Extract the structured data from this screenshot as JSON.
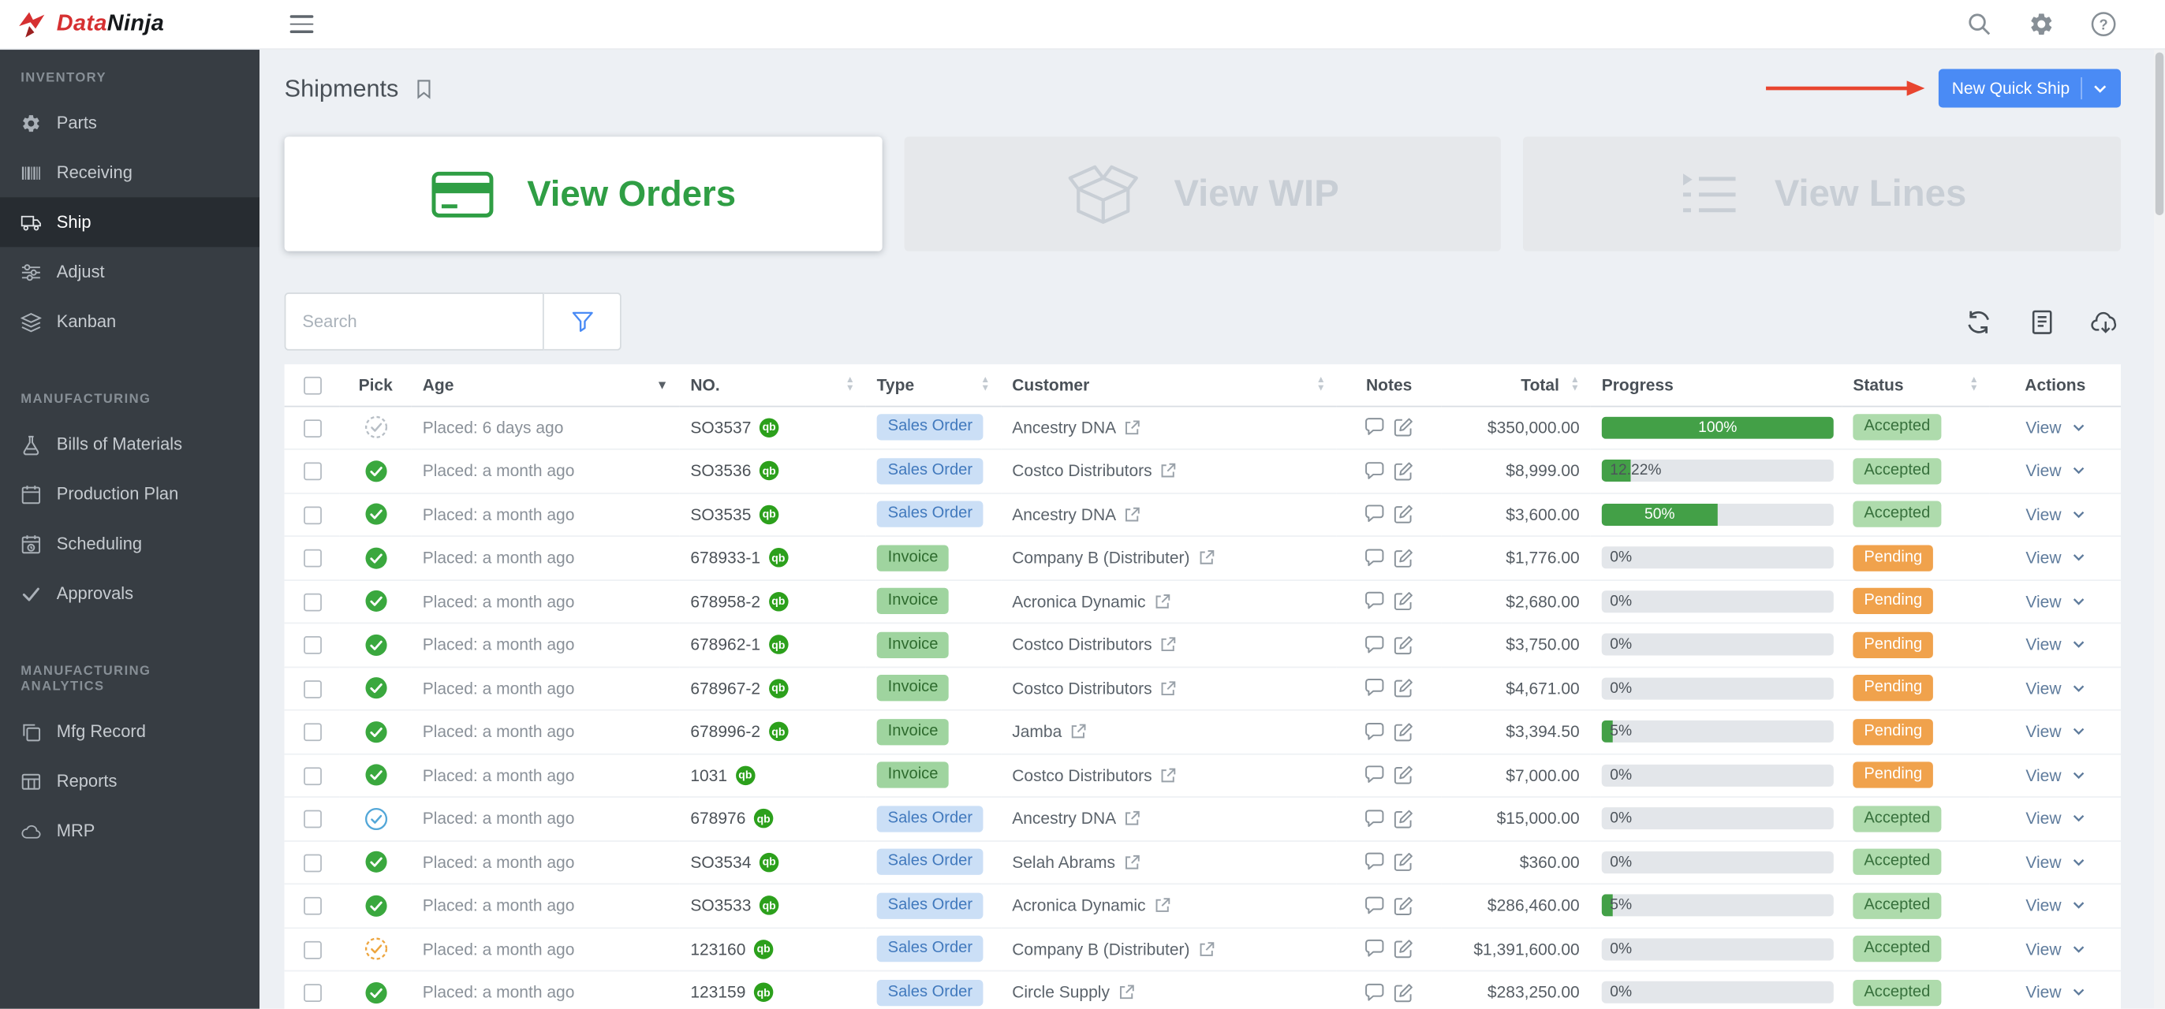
{
  "brand": {
    "name_red": "Data",
    "name_dark": "Ninja"
  },
  "topbar": {
    "icons": [
      {
        "name": "search"
      },
      {
        "name": "gear"
      },
      {
        "name": "help"
      }
    ]
  },
  "sidebar": {
    "sections": [
      {
        "title": "INVENTORY",
        "items": [
          {
            "label": "Parts",
            "icon": "parts",
            "active": false
          },
          {
            "label": "Receiving",
            "icon": "receiving",
            "active": false
          },
          {
            "label": "Ship",
            "icon": "ship",
            "active": true
          },
          {
            "label": "Adjust",
            "icon": "adjust",
            "active": false
          },
          {
            "label": "Kanban",
            "icon": "kanban",
            "active": false
          }
        ]
      },
      {
        "title": "MANUFACTURING",
        "items": [
          {
            "label": "Bills of Materials",
            "icon": "bom",
            "active": false
          },
          {
            "label": "Production Plan",
            "icon": "plan",
            "active": false
          },
          {
            "label": "Scheduling",
            "icon": "schedule",
            "active": false
          },
          {
            "label": "Approvals",
            "icon": "approvals",
            "active": false
          }
        ]
      },
      {
        "title": "MANUFACTURING ANALYTICS",
        "items": [
          {
            "label": "Mfg Record",
            "icon": "record",
            "active": false
          },
          {
            "label": "Reports",
            "icon": "reports",
            "active": false
          },
          {
            "label": "MRP",
            "icon": "mrp",
            "active": false
          }
        ]
      }
    ]
  },
  "page": {
    "title": "Shipments",
    "primary_button": {
      "label": "New Quick Ship"
    },
    "view_cards": [
      {
        "label": "View Orders",
        "icon": "credit-card",
        "state": "active"
      },
      {
        "label": "View WIP",
        "icon": "open-box",
        "state": "disabled"
      },
      {
        "label": "View Lines",
        "icon": "list-lines",
        "state": "disabled"
      }
    ],
    "search": {
      "placeholder": "Search"
    },
    "toolbar_icons": [
      {
        "name": "refresh"
      },
      {
        "name": "report"
      },
      {
        "name": "export"
      }
    ]
  },
  "table": {
    "columns": [
      {
        "key": "pick",
        "label": "Pick",
        "sort": "none"
      },
      {
        "key": "age",
        "label": "Age",
        "sort": "desc"
      },
      {
        "key": "no",
        "label": "NO.",
        "sort": "both"
      },
      {
        "key": "type",
        "label": "Type",
        "sort": "both"
      },
      {
        "key": "customer",
        "label": "Customer",
        "sort": "both"
      },
      {
        "key": "notes",
        "label": "Notes",
        "sort": "none"
      },
      {
        "key": "total",
        "label": "Total",
        "sort": "both"
      },
      {
        "key": "progress",
        "label": "Progress",
        "sort": "none"
      },
      {
        "key": "status",
        "label": "Status",
        "sort": "both"
      },
      {
        "key": "actions",
        "label": "Actions",
        "sort": "none"
      }
    ],
    "rows": [
      {
        "pick": "muted",
        "age": "Placed: 6 days ago",
        "no": "SO3537",
        "type": "Sales Order",
        "customer": "Ancestry DNA",
        "total": "$350,000.00",
        "progress_pct": 100,
        "progress_label": "100%",
        "status": "Accepted",
        "action": "View"
      },
      {
        "pick": "done",
        "age": "Placed: a month ago",
        "no": "SO3536",
        "type": "Sales Order",
        "customer": "Costco Distributors",
        "total": "$8,999.00",
        "progress_pct": 12.22,
        "progress_label": "12.22%",
        "status": "Accepted",
        "action": "View"
      },
      {
        "pick": "done",
        "age": "Placed: a month ago",
        "no": "SO3535",
        "type": "Sales Order",
        "customer": "Ancestry DNA",
        "total": "$3,600.00",
        "progress_pct": 50,
        "progress_label": "50%",
        "status": "Accepted",
        "action": "View"
      },
      {
        "pick": "done",
        "age": "Placed: a month ago",
        "no": "678933-1",
        "type": "Invoice",
        "customer": "Company B (Distributer)",
        "total": "$1,776.00",
        "progress_pct": 0,
        "progress_label": "0%",
        "status": "Pending",
        "action": "View"
      },
      {
        "pick": "done",
        "age": "Placed: a month ago",
        "no": "678958-2",
        "type": "Invoice",
        "customer": "Acronica Dynamic",
        "total": "$2,680.00",
        "progress_pct": 0,
        "progress_label": "0%",
        "status": "Pending",
        "action": "View"
      },
      {
        "pick": "done",
        "age": "Placed: a month ago",
        "no": "678962-1",
        "type": "Invoice",
        "customer": "Costco Distributors",
        "total": "$3,750.00",
        "progress_pct": 0,
        "progress_label": "0%",
        "status": "Pending",
        "action": "View"
      },
      {
        "pick": "done",
        "age": "Placed: a month ago",
        "no": "678967-2",
        "type": "Invoice",
        "customer": "Costco Distributors",
        "total": "$4,671.00",
        "progress_pct": 0,
        "progress_label": "0%",
        "status": "Pending",
        "action": "View"
      },
      {
        "pick": "done",
        "age": "Placed: a month ago",
        "no": "678996-2",
        "type": "Invoice",
        "customer": "Jamba",
        "total": "$3,394.50",
        "progress_pct": 5,
        "progress_label": "5%",
        "status": "Pending",
        "action": "View"
      },
      {
        "pick": "done",
        "age": "Placed: a month ago",
        "no": "1031",
        "type": "Invoice",
        "customer": "Costco Distributors",
        "total": "$7,000.00",
        "progress_pct": 0,
        "progress_label": "0%",
        "status": "Pending",
        "action": "View"
      },
      {
        "pick": "outline-blue",
        "age": "Placed: a month ago",
        "no": "678976",
        "type": "Sales Order",
        "customer": "Ancestry DNA",
        "total": "$15,000.00",
        "progress_pct": 0,
        "progress_label": "0%",
        "status": "Accepted",
        "action": "View"
      },
      {
        "pick": "done",
        "age": "Placed: a month ago",
        "no": "SO3534",
        "type": "Sales Order",
        "customer": "Selah Abrams",
        "total": "$360.00",
        "progress_pct": 0,
        "progress_label": "0%",
        "status": "Accepted",
        "action": "View"
      },
      {
        "pick": "done",
        "age": "Placed: a month ago",
        "no": "SO3533",
        "type": "Sales Order",
        "customer": "Acronica Dynamic",
        "total": "$286,460.00",
        "progress_pct": 5,
        "progress_label": "5%",
        "status": "Accepted",
        "action": "View"
      },
      {
        "pick": "outline-orange",
        "age": "Placed: a month ago",
        "no": "123160",
        "type": "Sales Order",
        "customer": "Company B (Distributer)",
        "total": "$1,391,600.00",
        "progress_pct": 0,
        "progress_label": "0%",
        "status": "Accepted",
        "action": "View"
      },
      {
        "pick": "done",
        "age": "Placed: a month ago",
        "no": "123159",
        "type": "Sales Order",
        "customer": "Circle Supply",
        "total": "$283,250.00",
        "progress_pct": 0,
        "progress_label": "0%",
        "status": "Accepted",
        "action": "View"
      }
    ]
  },
  "colors": {
    "primary_button": "#4a8bf5",
    "brand_red": "#d63031",
    "sidebar_bg": "#373d43",
    "page_bg": "#edf0f4",
    "progress_fill": "#43a047",
    "status_accepted_bg": "#aedbac",
    "status_accepted_text": "#37703c",
    "status_pending_bg": "#f0a24c",
    "type_sales_order_bg": "#cbdff6",
    "type_sales_order_text": "#4179bd",
    "type_invoice_bg": "#9fd49f",
    "type_invoice_text": "#2e6b2e",
    "annotation_arrow": "#e8452f",
    "quickbooks_green": "#2ca01c",
    "active_card_text": "#2f9e44"
  }
}
